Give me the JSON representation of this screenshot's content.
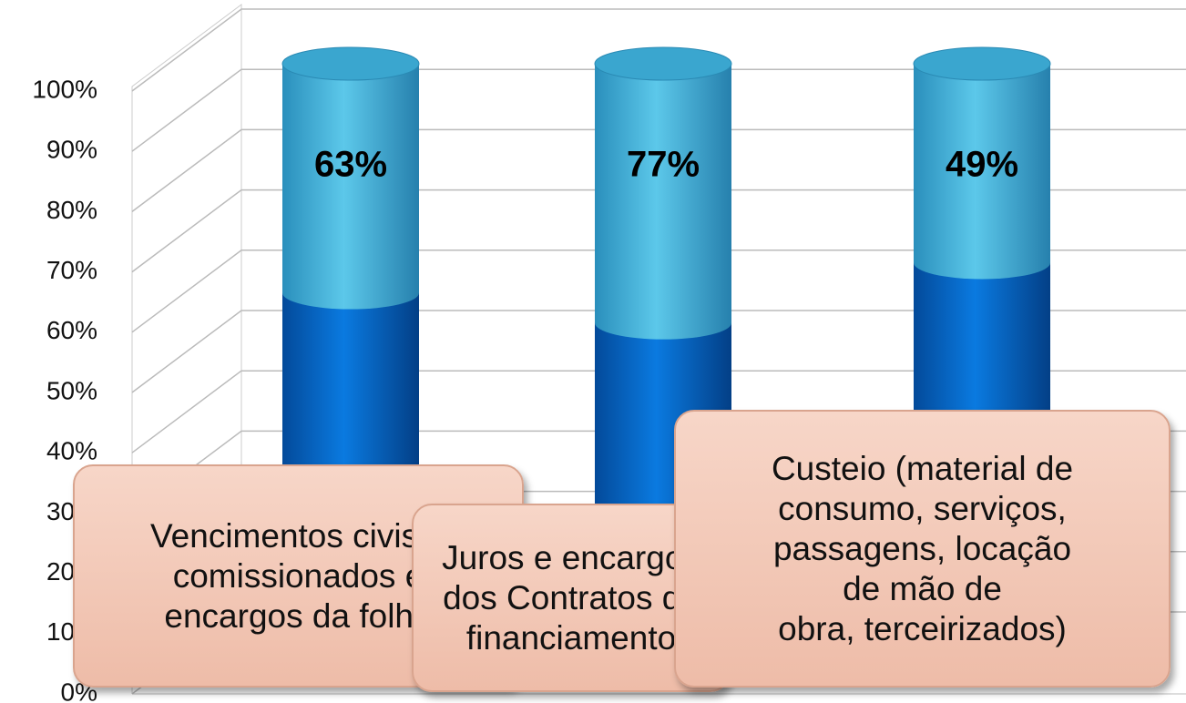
{
  "chart_data": {
    "type": "bar",
    "stacked": true,
    "categories": [
      null,
      null,
      null
    ],
    "series": [
      {
        "color": "#0a6fd0",
        "values": [
          62,
          57,
          67
        ]
      },
      {
        "color": "#45b6dc",
        "values": [
          38,
          43,
          33
        ]
      }
    ],
    "annotations": [
      "63%",
      "77%",
      "49%"
    ],
    "ylim": [
      0,
      100
    ],
    "yticks": [
      {
        "value": 0,
        "label": "0%"
      },
      {
        "value": 10,
        "label": "10%"
      },
      {
        "value": 20,
        "label": "20%"
      },
      {
        "value": 30,
        "label": "30%"
      },
      {
        "value": 40,
        "label": "40%"
      },
      {
        "value": 50,
        "label": "50%"
      },
      {
        "value": 60,
        "label": "60%"
      },
      {
        "value": 70,
        "label": "70%"
      },
      {
        "value": 80,
        "label": "80%"
      },
      {
        "value": 90,
        "label": "90%"
      },
      {
        "value": 100,
        "label": "100%"
      }
    ],
    "grid": true,
    "callouts": [
      [
        "Vencimentos civis e",
        "comissionados e",
        "encargos da folha"
      ],
      [
        "Juros e encargos",
        "dos Contratos de",
        "financiamento"
      ],
      [
        "Custeio (material de",
        "consumo, serviços,",
        "passagens, locação",
        "de mão de",
        "obra, terceirizados)"
      ]
    ]
  }
}
